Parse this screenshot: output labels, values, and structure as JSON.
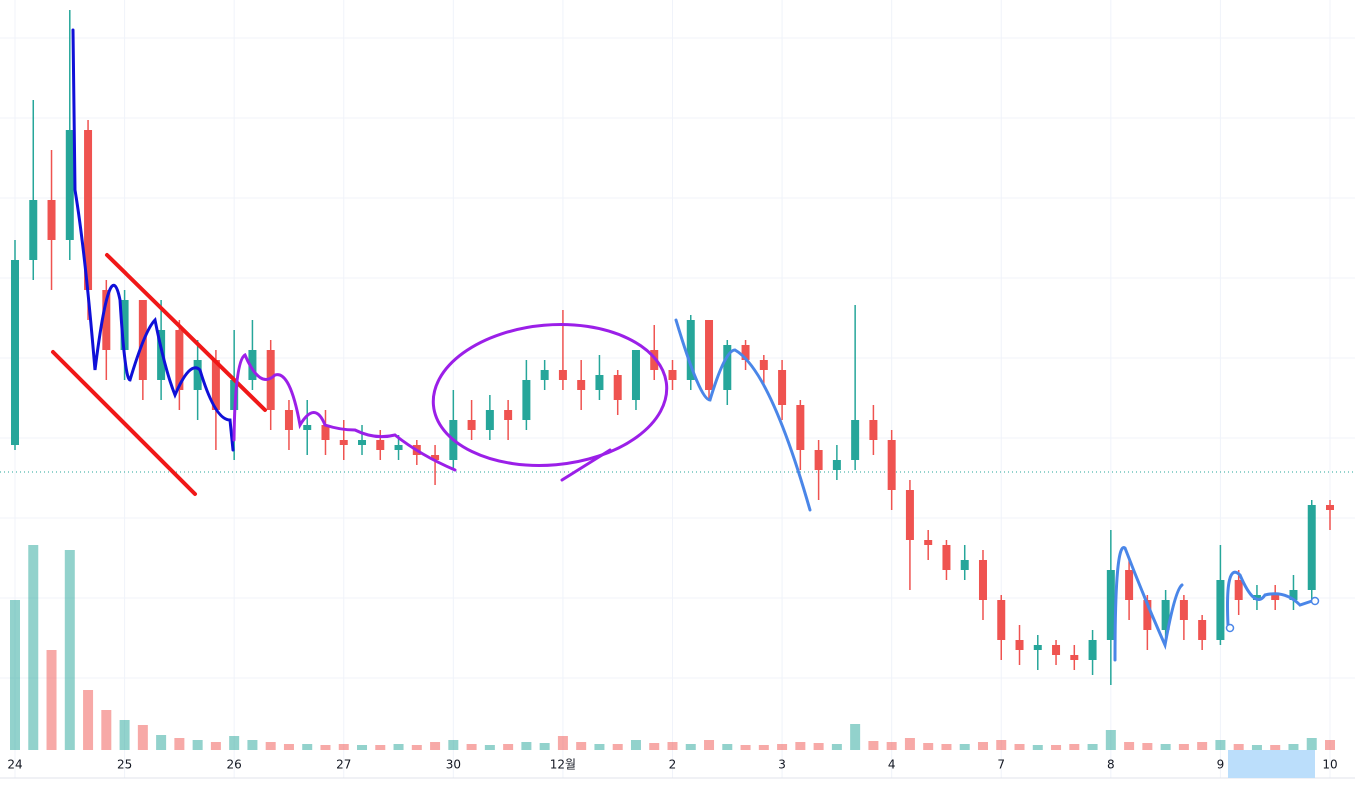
{
  "chart_data": {
    "type": "candlestick",
    "categories": [
      "24",
      null,
      null,
      null,
      null,
      null,
      "25",
      null,
      null,
      null,
      null,
      null,
      "26",
      null,
      null,
      null,
      null,
      null,
      "27",
      null,
      null,
      null,
      null,
      null,
      "30",
      null,
      null,
      null,
      null,
      null,
      "12월",
      null,
      null,
      null,
      null,
      null,
      "2",
      null,
      null,
      null,
      null,
      null,
      "3",
      null,
      null,
      null,
      null,
      null,
      "4",
      null,
      null,
      null,
      null,
      null,
      "7",
      null,
      null,
      null,
      null,
      null,
      "8",
      null,
      null,
      null,
      null,
      null,
      "9",
      null,
      null,
      null,
      null,
      null,
      "10"
    ],
    "open": [
      315,
      500,
      560,
      520,
      630,
      470,
      410,
      460,
      380,
      430,
      370,
      400,
      350,
      380,
      410,
      350,
      330,
      335,
      320,
      315,
      320,
      310,
      315,
      305,
      300,
      340,
      330,
      350,
      340,
      380,
      390,
      380,
      370,
      385,
      360,
      410,
      390,
      380,
      440,
      370,
      415,
      400,
      390,
      355,
      310,
      290,
      300,
      340,
      320,
      270,
      220,
      215,
      190,
      200,
      160,
      120,
      110,
      115,
      105,
      100,
      120,
      190,
      160,
      130,
      160,
      140,
      120,
      180,
      160,
      165,
      160,
      170,
      255
    ],
    "high": [
      520,
      660,
      610,
      750,
      640,
      480,
      470,
      460,
      460,
      440,
      420,
      410,
      430,
      440,
      420,
      360,
      360,
      350,
      340,
      335,
      330,
      325,
      320,
      315,
      370,
      360,
      365,
      360,
      400,
      400,
      450,
      400,
      405,
      390,
      410,
      435,
      400,
      445,
      440,
      420,
      420,
      405,
      400,
      360,
      320,
      315,
      455,
      355,
      330,
      280,
      230,
      220,
      215,
      210,
      165,
      135,
      125,
      120,
      115,
      130,
      230,
      200,
      165,
      170,
      165,
      145,
      215,
      190,
      175,
      175,
      185,
      260,
      260
    ],
    "low": [
      310,
      480,
      470,
      500,
      440,
      380,
      380,
      360,
      360,
      350,
      340,
      310,
      300,
      370,
      330,
      310,
      305,
      305,
      300,
      305,
      300,
      300,
      295,
      275,
      290,
      320,
      320,
      320,
      330,
      370,
      370,
      350,
      360,
      345,
      350,
      380,
      370,
      370,
      360,
      355,
      390,
      375,
      340,
      290,
      260,
      280,
      290,
      305,
      250,
      170,
      200,
      180,
      180,
      140,
      100,
      95,
      90,
      95,
      90,
      85,
      75,
      140,
      110,
      120,
      120,
      110,
      115,
      145,
      150,
      150,
      150,
      160,
      230
    ],
    "close": [
      500,
      560,
      520,
      630,
      470,
      410,
      460,
      380,
      430,
      370,
      400,
      350,
      380,
      410,
      350,
      330,
      335,
      320,
      315,
      320,
      310,
      315,
      305,
      300,
      340,
      330,
      350,
      340,
      380,
      390,
      380,
      370,
      385,
      360,
      410,
      390,
      380,
      440,
      370,
      415,
      400,
      390,
      355,
      310,
      290,
      300,
      340,
      320,
      270,
      220,
      215,
      190,
      200,
      160,
      120,
      110,
      115,
      105,
      100,
      120,
      190,
      160,
      130,
      160,
      140,
      120,
      180,
      160,
      165,
      160,
      170,
      255,
      250
    ],
    "volume": [
      150,
      205,
      100,
      200,
      60,
      40,
      30,
      25,
      15,
      12,
      10,
      8,
      14,
      10,
      8,
      6,
      6,
      5,
      6,
      5,
      5,
      6,
      5,
      8,
      10,
      6,
      5,
      6,
      8,
      7,
      14,
      8,
      6,
      6,
      10,
      7,
      8,
      6,
      10,
      6,
      5,
      5,
      6,
      8,
      7,
      6,
      26,
      9,
      8,
      12,
      7,
      6,
      6,
      8,
      10,
      6,
      5,
      5,
      6,
      6,
      20,
      8,
      7,
      6,
      6,
      8,
      10,
      6,
      5,
      5,
      6,
      12,
      10
    ],
    "up_color": "#26a69a",
    "down_color": "#ef5350",
    "ylim": [
      0,
      760
    ],
    "volume_lim": [
      0,
      220
    ]
  }
}
